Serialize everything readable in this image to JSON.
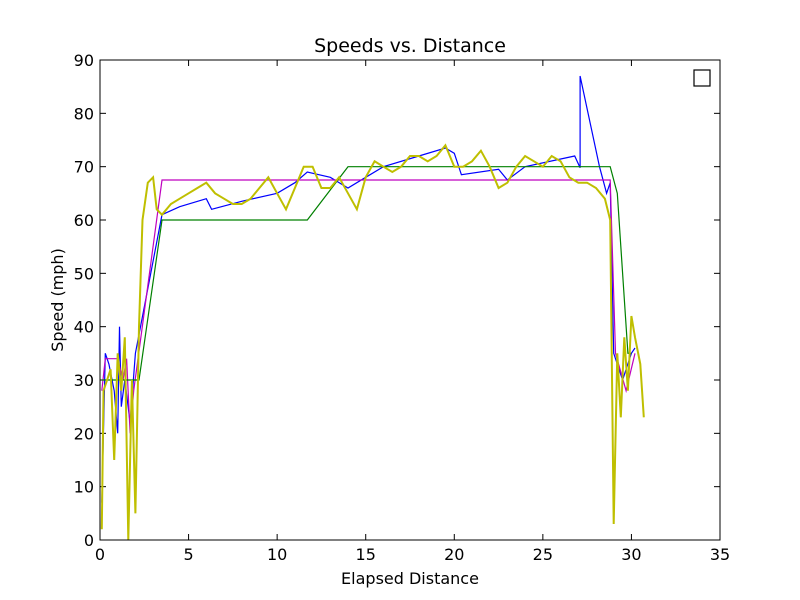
{
  "chart_data": {
    "type": "line",
    "title": "Speeds vs. Distance",
    "x_label": "Elapsed Distance",
    "y_label": "Speed (mph)",
    "xlim": [
      0,
      35
    ],
    "xticks": [
      0,
      5,
      10,
      15,
      20,
      25,
      30,
      35
    ],
    "ylim": [
      0,
      90
    ],
    "yticks": [
      0,
      10,
      20,
      30,
      40,
      50,
      60,
      70,
      80,
      90
    ],
    "legend": "upper right",
    "series": [
      {
        "color": "#0000ff",
        "x": [
          0.1,
          0.3,
          0.5,
          0.8,
          1.0,
          1.1,
          1.2,
          1.4,
          1.7,
          2.0,
          3.5,
          4.5,
          6.0,
          6.3,
          8.0,
          10.0,
          11.0,
          11.7,
          13.0,
          14.0,
          15.0,
          16.0,
          18.0,
          19.5,
          20.0,
          20.4,
          22.5,
          23.0,
          24.0,
          26.8,
          27.1,
          27.1,
          28.2,
          28.6,
          28.8,
          29.0,
          29.5,
          30.0,
          30.2
        ],
        "values": [
          7,
          35,
          33,
          28,
          20,
          40,
          25,
          30,
          22,
          35,
          61,
          62.5,
          64,
          62,
          63.5,
          65,
          67,
          69,
          68,
          66,
          68,
          70,
          72,
          73.5,
          72.5,
          68.5,
          69.5,
          67.5,
          70,
          72,
          69.8,
          87,
          70,
          65,
          67,
          35,
          30,
          35,
          36
        ]
      },
      {
        "color": "#bf00bf",
        "x": [
          0.1,
          0.3,
          1.0,
          1.3,
          1.5,
          1.7,
          1.9,
          3.5,
          28.8,
          29.1,
          29.7,
          30.2
        ],
        "values": [
          28,
          34,
          34,
          30,
          34,
          20,
          28,
          67.5,
          67.5,
          35,
          28,
          35
        ]
      },
      {
        "color": "#008000",
        "x": [
          0.1,
          0.5,
          1.5,
          2.0,
          2.2,
          3.5,
          11.7,
          14.0,
          28.8,
          29.2,
          29.8,
          30.0
        ],
        "values": [
          30,
          30,
          30,
          30,
          30,
          60,
          60,
          70,
          70,
          65,
          35,
          35
        ]
      },
      {
        "color": "#bfbf00",
        "x": [
          0.1,
          0.2,
          0.4,
          0.6,
          0.8,
          1.0,
          1.2,
          1.4,
          1.6,
          1.8,
          2.0,
          2.2,
          2.4,
          2.7,
          3.0,
          3.2,
          3.5,
          4.0,
          4.5,
          5.0,
          5.5,
          6.0,
          6.5,
          7.0,
          7.5,
          8.0,
          8.5,
          9.0,
          9.5,
          10.0,
          10.5,
          11.0,
          11.5,
          12.0,
          12.5,
          13.0,
          13.5,
          14.0,
          14.5,
          15.0,
          15.5,
          16.0,
          16.5,
          17.0,
          17.5,
          18.0,
          18.5,
          19.0,
          19.5,
          20.0,
          20.5,
          21.0,
          21.5,
          22.0,
          22.5,
          23.0,
          23.5,
          24.0,
          24.5,
          25.0,
          25.5,
          26.0,
          26.5,
          27.0,
          27.5,
          28.0,
          28.5,
          28.8,
          29.0,
          29.2,
          29.4,
          29.6,
          29.8,
          30.0,
          30.2,
          30.5,
          30.7
        ],
        "values": [
          2,
          28,
          30,
          32,
          15,
          35,
          28,
          38,
          0,
          30,
          5,
          40,
          60,
          67,
          68,
          62,
          61,
          63,
          64,
          65,
          66,
          67,
          65,
          64,
          63,
          63,
          64,
          66,
          68,
          65,
          62,
          66,
          70,
          70,
          66,
          66,
          68,
          65,
          62,
          68,
          71,
          70,
          69,
          70,
          72,
          72,
          71,
          72,
          74,
          70,
          70,
          71,
          73,
          70,
          66,
          67,
          70,
          72,
          71,
          70,
          72,
          71,
          68,
          67,
          67,
          66,
          64,
          60,
          3,
          35,
          23,
          38,
          28,
          42,
          38,
          33,
          23
        ]
      }
    ]
  }
}
